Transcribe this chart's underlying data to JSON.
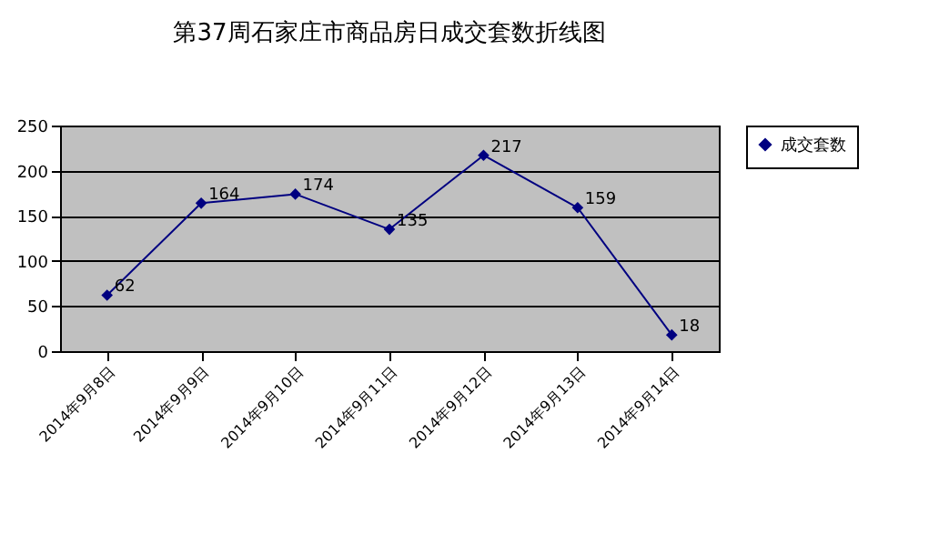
{
  "chart_data": {
    "type": "line",
    "title": "第37周石家庄市商品房日成交套数折线图",
    "categories": [
      "2014年9月8日",
      "2014年9月9日",
      "2014年9月10日",
      "2014年9月11日",
      "2014年9月12日",
      "2014年9月13日",
      "2014年9月14日"
    ],
    "series": [
      {
        "name": "成交套数",
        "color": "#000080",
        "values": [
          62,
          164,
          174,
          135,
          217,
          159,
          18
        ]
      }
    ],
    "ylim": [
      0,
      250
    ],
    "yticks": [
      0,
      50,
      100,
      150,
      200,
      250
    ],
    "grid": "y",
    "legend": "right",
    "marker": "diamond",
    "line_style": "solid",
    "data_labels": true
  }
}
